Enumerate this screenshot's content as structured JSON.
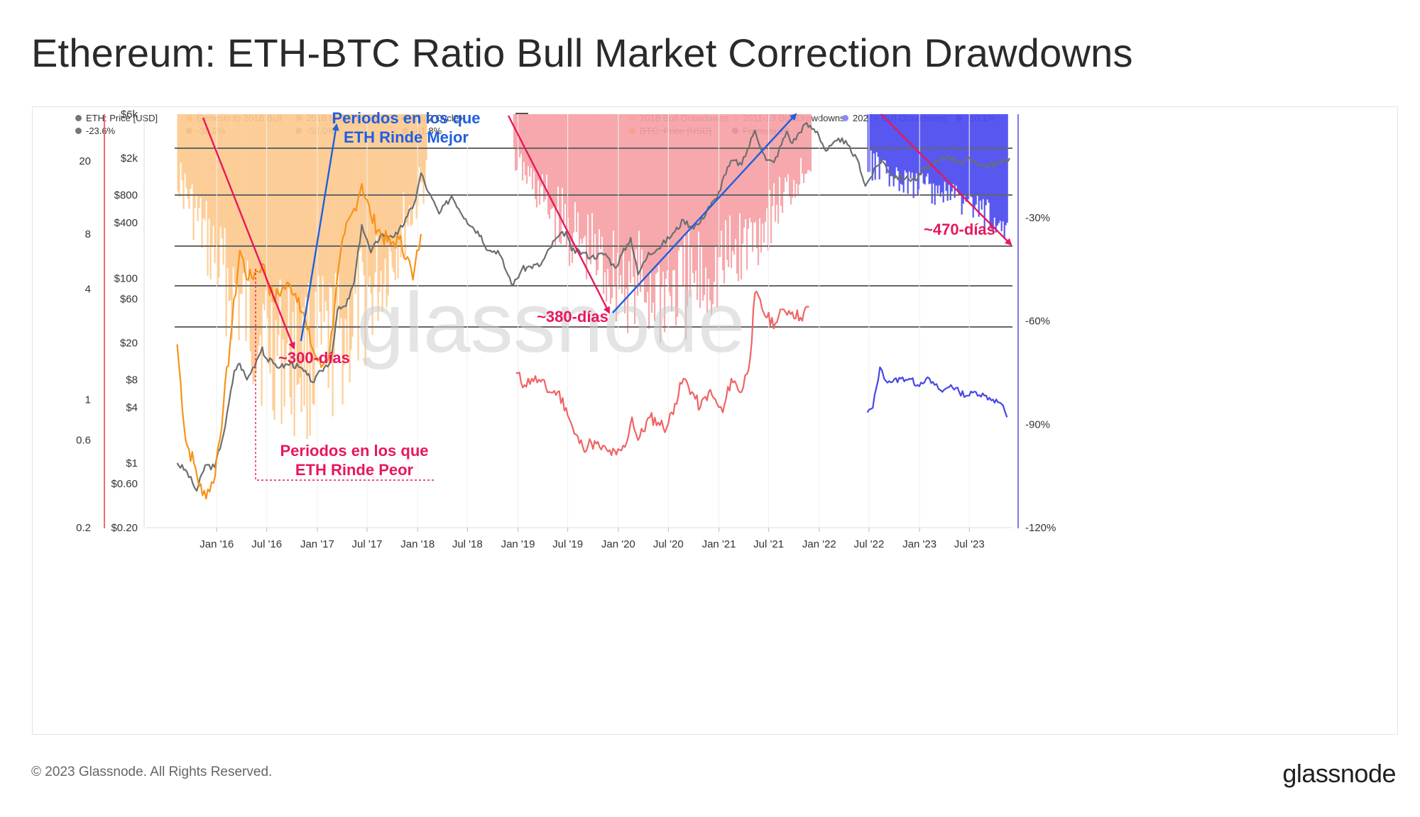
{
  "title": "Ethereum: ETH-BTC Ratio Bull Market Correction Drawdowns",
  "footer": "© 2023 Glassnode. All Rights Reserved.",
  "brand": "glassnode",
  "watermark": "glassnode",
  "legend": [
    {
      "label": "ETH: Price [USD]",
      "color": "#777777",
      "strike": false
    },
    {
      "label": "Genesis to 2018 Bull",
      "color": "#f7931a",
      "strike": false
    },
    {
      "label": "2018 to 2021 Bull",
      "color": "#f06b6b",
      "strike": false
    },
    {
      "label": "2022 Cycle+",
      "color": "#4a4ae8",
      "strike": false
    },
    {
      "label": "",
      "color": "#555555",
      "strike": false
    },
    {
      "label": "2018 Bull Drawdowns",
      "color": "#ffd7a8",
      "strike": false
    },
    {
      "label": "2011-13 Bull Drawdowns",
      "color": "#f8c2c2",
      "strike": false
    },
    {
      "label": "2022+ Bull Drawdowns",
      "color": "#8a8af2",
      "strike": false
    },
    {
      "label": "-10.1%",
      "color": "#777777",
      "strike": false
    },
    {
      "label": "-23.6%",
      "color": "#777777",
      "strike": false
    },
    {
      "label": "-38.2%",
      "color": "#777777",
      "strike": false
    },
    {
      "label": "-50.0%",
      "color": "#777777",
      "strike": false
    },
    {
      "label": "-61.8%",
      "color": "#777777",
      "strike": false
    },
    {
      "label": "-",
      "color": "#ffffff",
      "strike": false
    },
    {
      "label": "BTC: Price [USD]",
      "color": "#f7931a",
      "strike": true
    },
    {
      "label": "Formula 18",
      "color": "#1b2a8c",
      "strike": true
    }
  ],
  "colors": {
    "eth": "#6e6e6e",
    "genesis": "#f7931a",
    "bull2018_21": "#f06464",
    "cycle2022": "#4646e6",
    "dd_orange": "#fdc98d",
    "dd_red": "#f6a0a4",
    "dd_blue": "#4d4df0",
    "arrow_red": "#e8175d",
    "arrow_blue": "#1f5fe0",
    "axis_red": "#f06b6b",
    "axis_blue": "#7a7af0"
  },
  "chart_data": {
    "type": "line",
    "title": "Ethereum: ETH-BTC Ratio Bull Market Correction Drawdowns",
    "x_range": [
      "2015-08",
      "2023-12"
    ],
    "x_ticks": [
      "Jan '16",
      "Jul '16",
      "Jan '17",
      "Jul '17",
      "Jan '18",
      "Jul '18",
      "Jan '19",
      "Jul '19",
      "Jan '20",
      "Jul '20",
      "Jan '21",
      "Jul '21",
      "Jan '22",
      "Jul '22",
      "Jan '23",
      "Jul '23"
    ],
    "y_axis_price_ticks": [
      "$6k",
      "$2k",
      "$800",
      "$400",
      "$100",
      "$60",
      "$20",
      "$8",
      "$4",
      "$1",
      "$0.60",
      "$0.20"
    ],
    "y_axis_price_range": [
      0.2,
      6000
    ],
    "y_axis_ratio_ticks": [
      "20",
      "8",
      "4",
      "1",
      "0.6",
      "0.2"
    ],
    "y_axis_ratio_range": [
      0.2,
      36
    ],
    "y_axis_drawdown_ticks": [
      "-30%",
      "-60%",
      "-90%",
      "-120%"
    ],
    "y_axis_drawdown_range": [
      -120,
      0
    ],
    "fib_levels": [
      "-10.1%",
      "-23.6%",
      "-38.2%",
      "-50.0%",
      "-61.8%"
    ],
    "series": [
      {
        "name": "ETH: Price [USD]",
        "scale": "price",
        "points": [
          [
            "2015-08-10",
            1.0
          ],
          [
            "2015-09-15",
            0.8
          ],
          [
            "2015-10-20",
            0.5
          ],
          [
            "2015-11-20",
            0.95
          ],
          [
            "2015-12-25",
            0.9
          ],
          [
            "2016-02-01",
            2.5
          ],
          [
            "2016-03-05",
            10
          ],
          [
            "2016-03-25",
            12
          ],
          [
            "2016-04-20",
            8
          ],
          [
            "2016-05-25",
            13
          ],
          [
            "2016-06-15",
            18
          ],
          [
            "2016-06-25",
            14
          ],
          [
            "2016-07-25",
            12
          ],
          [
            "2016-08-20",
            11
          ],
          [
            "2016-09-25",
            12
          ],
          [
            "2016-10-25",
            11
          ],
          [
            "2016-11-25",
            9
          ],
          [
            "2016-12-20",
            7.5
          ],
          [
            "2017-01-15",
            10
          ],
          [
            "2017-02-20",
            13
          ],
          [
            "2017-03-15",
            45
          ],
          [
            "2017-04-15",
            50
          ],
          [
            "2017-05-15",
            90
          ],
          [
            "2017-06-12",
            380
          ],
          [
            "2017-07-15",
            190
          ],
          [
            "2017-08-20",
            300
          ],
          [
            "2017-09-25",
            290
          ],
          [
            "2017-10-20",
            300
          ],
          [
            "2017-11-25",
            470
          ],
          [
            "2017-12-25",
            720
          ],
          [
            "2018-01-13",
            1380
          ],
          [
            "2018-02-10",
            850
          ],
          [
            "2018-03-20",
            500
          ],
          [
            "2018-05-05",
            780
          ],
          [
            "2018-06-25",
            440
          ],
          [
            "2018-08-20",
            290
          ],
          [
            "2018-09-15",
            200
          ],
          [
            "2018-10-20",
            200
          ],
          [
            "2018-11-25",
            110
          ],
          [
            "2018-12-15",
            85
          ],
          [
            "2019-01-15",
            125
          ],
          [
            "2019-02-15",
            135
          ],
          [
            "2019-03-25",
            140
          ],
          [
            "2019-05-15",
            260
          ],
          [
            "2019-06-25",
            320
          ],
          [
            "2019-07-15",
            200
          ],
          [
            "2019-08-25",
            190
          ],
          [
            "2019-09-25",
            170
          ],
          [
            "2019-11-15",
            185
          ],
          [
            "2019-12-20",
            130
          ],
          [
            "2020-02-15",
            275
          ],
          [
            "2020-03-13",
            110
          ],
          [
            "2020-04-20",
            190
          ],
          [
            "2020-05-25",
            210
          ],
          [
            "2020-07-25",
            320
          ],
          [
            "2020-08-25",
            430
          ],
          [
            "2020-09-25",
            360
          ],
          [
            "2020-10-25",
            400
          ],
          [
            "2020-11-25",
            600
          ],
          [
            "2020-12-25",
            730
          ],
          [
            "2021-01-20",
            1300
          ],
          [
            "2021-02-20",
            1900
          ],
          [
            "2021-03-25",
            1700
          ],
          [
            "2021-05-12",
            4000
          ],
          [
            "2021-06-22",
            1900
          ],
          [
            "2021-07-20",
            1800
          ],
          [
            "2021-09-05",
            3900
          ],
          [
            "2021-09-25",
            2900
          ],
          [
            "2021-11-10",
            4700
          ],
          [
            "2021-12-25",
            3900
          ],
          [
            "2022-01-25",
            2400
          ],
          [
            "2022-03-25",
            3300
          ],
          [
            "2022-05-25",
            1800
          ],
          [
            "2022-06-18",
            1000
          ],
          [
            "2022-08-14",
            1950
          ],
          [
            "2022-09-25",
            1300
          ],
          [
            "2022-11-10",
            1200
          ],
          [
            "2022-12-25",
            1200
          ],
          [
            "2023-01-25",
            1600
          ],
          [
            "2023-02-20",
            1700
          ],
          [
            "2023-04-15",
            2100
          ],
          [
            "2023-05-25",
            1850
          ],
          [
            "2023-07-15",
            1900
          ],
          [
            "2023-08-25",
            1650
          ],
          [
            "2023-10-25",
            1800
          ],
          [
            "2023-11-25",
            2000
          ]
        ]
      },
      {
        "name": "Genesis to 2018 Bull",
        "scale": "ratio",
        "points": [
          [
            "2015-08-10",
            2.0
          ],
          [
            "2015-09-10",
            0.6
          ],
          [
            "2015-10-10",
            0.45
          ],
          [
            "2015-11-10",
            0.3
          ],
          [
            "2015-12-20",
            0.35
          ],
          [
            "2016-01-25",
            0.9
          ],
          [
            "2016-02-25",
            2.5
          ],
          [
            "2016-03-25",
            6.5
          ],
          [
            "2016-04-25",
            4.5
          ],
          [
            "2016-05-25",
            5.0
          ],
          [
            "2016-06-15",
            5.5
          ],
          [
            "2016-07-25",
            3.5
          ],
          [
            "2016-08-25",
            4.0
          ],
          [
            "2016-09-25",
            4.2
          ],
          [
            "2016-10-25",
            3.6
          ],
          [
            "2016-11-25",
            2.4
          ],
          [
            "2016-12-20",
            1.8
          ],
          [
            "2017-01-15",
            1.5
          ],
          [
            "2017-02-15",
            1.8
          ],
          [
            "2017-03-10",
            4.0
          ],
          [
            "2017-04-10",
            8.0
          ],
          [
            "2017-05-15",
            11
          ],
          [
            "2017-06-12",
            15
          ],
          [
            "2017-07-15",
            10
          ],
          [
            "2017-08-20",
            8.0
          ],
          [
            "2017-09-25",
            7.0
          ],
          [
            "2017-10-25",
            7.5
          ],
          [
            "2017-11-25",
            6.0
          ],
          [
            "2017-12-15",
            4.5
          ],
          [
            "2018-01-13",
            8.0
          ]
        ]
      },
      {
        "name": "2018 to 2021 Bull",
        "scale": "ratio",
        "points": [
          [
            "2018-12-25",
            1.4
          ],
          [
            "2019-01-25",
            1.2
          ],
          [
            "2019-02-20",
            1.3
          ],
          [
            "2019-03-25",
            1.25
          ],
          [
            "2019-04-25",
            1.1
          ],
          [
            "2019-05-25",
            1.1
          ],
          [
            "2019-06-25",
            0.9
          ],
          [
            "2019-07-25",
            0.65
          ],
          [
            "2019-08-25",
            0.55
          ],
          [
            "2019-09-25",
            0.58
          ],
          [
            "2019-10-25",
            0.55
          ],
          [
            "2019-11-25",
            0.52
          ],
          [
            "2019-12-25",
            0.5
          ],
          [
            "2020-01-25",
            0.55
          ],
          [
            "2020-02-20",
            0.8
          ],
          [
            "2020-03-13",
            0.6
          ],
          [
            "2020-04-25",
            0.8
          ],
          [
            "2020-05-25",
            0.75
          ],
          [
            "2020-06-25",
            0.7
          ],
          [
            "2020-07-25",
            0.95
          ],
          [
            "2020-08-25",
            1.3
          ],
          [
            "2020-09-25",
            1.1
          ],
          [
            "2020-10-25",
            0.9
          ],
          [
            "2020-11-25",
            1.1
          ],
          [
            "2020-12-25",
            0.95
          ],
          [
            "2021-01-15",
            0.85
          ],
          [
            "2021-02-15",
            1.3
          ],
          [
            "2021-03-25",
            1.1
          ],
          [
            "2021-04-25",
            1.7
          ],
          [
            "2021-05-12",
            3.8
          ],
          [
            "2021-06-25",
            2.8
          ],
          [
            "2021-07-25",
            2.6
          ],
          [
            "2021-08-25",
            3.1
          ],
          [
            "2021-09-25",
            3.0
          ],
          [
            "2021-10-25",
            2.8
          ],
          [
            "2021-11-25",
            3.2
          ]
        ]
      },
      {
        "name": "2022 Cycle+",
        "scale": "ratio",
        "points": [
          [
            "2022-06-25",
            0.85
          ],
          [
            "2022-07-15",
            0.9
          ],
          [
            "2022-08-10",
            1.5
          ],
          [
            "2022-08-25",
            1.3
          ],
          [
            "2022-09-25",
            1.25
          ],
          [
            "2022-10-25",
            1.3
          ],
          [
            "2022-11-25",
            1.3
          ],
          [
            "2022-12-25",
            1.2
          ],
          [
            "2023-01-25",
            1.3
          ],
          [
            "2023-02-25",
            1.2
          ],
          [
            "2023-03-25",
            1.1
          ],
          [
            "2023-04-25",
            1.2
          ],
          [
            "2023-05-25",
            1.1
          ],
          [
            "2023-06-25",
            1.05
          ],
          [
            "2023-07-25",
            1.1
          ],
          [
            "2023-08-25",
            1.05
          ],
          [
            "2023-09-25",
            1.0
          ],
          [
            "2023-10-25",
            0.95
          ],
          [
            "2023-11-15",
            0.8
          ]
        ]
      }
    ],
    "drawdown_regions": [
      {
        "name": "2018 Bull Drawdowns",
        "start": "2015-08-10",
        "end": "2018-02-01",
        "color": "dd_orange"
      },
      {
        "name": "2011-13 Bull Drawdowns",
        "start": "2018-12-15",
        "end": "2021-12-01",
        "color": "dd_red"
      },
      {
        "name": "2022+ Bull Drawdowns",
        "start": "2022-06-25",
        "end": "2023-11-15",
        "color": "dd_blue"
      }
    ],
    "annotations": {
      "days300": "~300-días",
      "days380": "~380-días",
      "days470": "~470-días",
      "better": [
        "Periodos en los que",
        "ETH Rinde Mejor"
      ],
      "worse": [
        "Periodos en los que",
        "ETH Rinde Peor"
      ]
    }
  }
}
